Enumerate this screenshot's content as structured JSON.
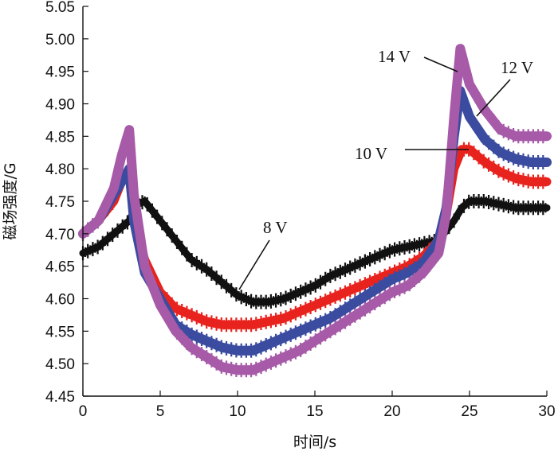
{
  "chart_data": {
    "type": "line",
    "title": "",
    "xlabel": "时间/s",
    "ylabel": "磁场强度/G",
    "xlim": [
      0,
      30
    ],
    "ylim": [
      4.45,
      5.05
    ],
    "grid": false,
    "x_ticks": [
      "0",
      "5",
      "10",
      "15",
      "20",
      "25",
      "30"
    ],
    "y_ticks": [
      "4.45",
      "4.50",
      "4.55",
      "4.60",
      "4.65",
      "4.70",
      "4.75",
      "4.80",
      "4.85",
      "4.90",
      "4.95",
      "5.00",
      "5.05"
    ],
    "series": [
      {
        "name": "8 V",
        "color": "#111111",
        "x": [
          0,
          1,
          2,
          3,
          3.5,
          4,
          5,
          6,
          7,
          8,
          9,
          10,
          11,
          12,
          13,
          14,
          15,
          16,
          17,
          18,
          19,
          20,
          21,
          22,
          23,
          24,
          24.5,
          25,
          26,
          27,
          28,
          29,
          30
        ],
        "y": [
          4.67,
          4.68,
          4.7,
          4.72,
          4.745,
          4.75,
          4.72,
          4.69,
          4.66,
          4.645,
          4.625,
          4.605,
          4.595,
          4.595,
          4.6,
          4.61,
          4.62,
          4.635,
          4.645,
          4.655,
          4.665,
          4.675,
          4.68,
          4.685,
          4.69,
          4.72,
          4.74,
          4.75,
          4.75,
          4.745,
          4.74,
          4.74,
          4.74
        ]
      },
      {
        "name": "10 V",
        "color": "#e8231e",
        "x": [
          0,
          1,
          2,
          2.5,
          3,
          3.3,
          4,
          5,
          6,
          7,
          8,
          9,
          10,
          11,
          12,
          13,
          14,
          15,
          16,
          17,
          18,
          19,
          20,
          21,
          22,
          23,
          23.5,
          24,
          24.5,
          25,
          26,
          27,
          28,
          29,
          30
        ],
        "y": [
          4.7,
          4.72,
          4.75,
          4.78,
          4.79,
          4.72,
          4.66,
          4.61,
          4.585,
          4.575,
          4.565,
          4.56,
          4.56,
          4.56,
          4.565,
          4.57,
          4.58,
          4.59,
          4.6,
          4.61,
          4.62,
          4.63,
          4.64,
          4.65,
          4.665,
          4.69,
          4.73,
          4.8,
          4.83,
          4.83,
          4.81,
          4.795,
          4.785,
          4.78,
          4.78
        ]
      },
      {
        "name": "12 V",
        "color": "#3b4ca0",
        "x": [
          0,
          1,
          2,
          2.5,
          3,
          3.3,
          4,
          5,
          6,
          7,
          8,
          9,
          10,
          11,
          12,
          13,
          14,
          15,
          16,
          17,
          18,
          19,
          20,
          21,
          22,
          23,
          23.5,
          24,
          24.4,
          25,
          26,
          27,
          28,
          29,
          30
        ],
        "y": [
          4.7,
          4.72,
          4.76,
          4.78,
          4.8,
          4.72,
          4.64,
          4.6,
          4.56,
          4.545,
          4.535,
          4.525,
          4.52,
          4.52,
          4.53,
          4.54,
          4.55,
          4.56,
          4.57,
          4.585,
          4.6,
          4.615,
          4.63,
          4.64,
          4.655,
          4.69,
          4.74,
          4.85,
          4.92,
          4.88,
          4.845,
          4.825,
          4.815,
          4.81,
          4.81
        ]
      },
      {
        "name": "14 V",
        "color": "#a65aa8",
        "x": [
          0,
          1,
          2,
          2.5,
          3,
          3.3,
          4,
          5,
          6,
          7,
          8,
          9,
          10,
          11,
          12,
          13,
          14,
          15,
          16,
          17,
          18,
          19,
          20,
          21,
          22,
          23,
          23.5,
          24,
          24.4,
          25,
          26,
          27,
          28,
          29,
          30
        ],
        "y": [
          4.7,
          4.72,
          4.77,
          4.82,
          4.86,
          4.76,
          4.65,
          4.59,
          4.55,
          4.525,
          4.51,
          4.495,
          4.49,
          4.49,
          4.5,
          4.51,
          4.52,
          4.535,
          4.55,
          4.565,
          4.58,
          4.595,
          4.61,
          4.62,
          4.64,
          4.67,
          4.73,
          4.88,
          4.985,
          4.93,
          4.89,
          4.86,
          4.85,
          4.85,
          4.85
        ]
      }
    ],
    "annotations": [
      {
        "text": "8 V",
        "series": "8 V"
      },
      {
        "text": "10 V",
        "series": "10 V"
      },
      {
        "text": "12 V",
        "series": "12 V"
      },
      {
        "text": "14 V",
        "series": "14 V"
      }
    ]
  }
}
